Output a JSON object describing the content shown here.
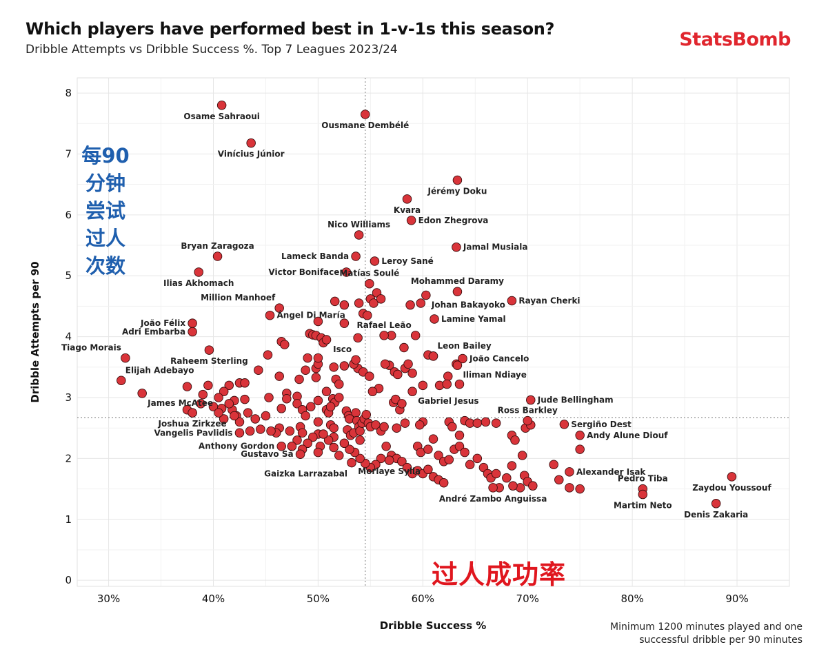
{
  "header": {
    "title": "Which players have performed best in 1-v-1s this season?",
    "subtitle": "Dribble Attempts vs Dribble Success %. Top 7 Leagues 2023/24",
    "brand": "StatsBomb"
  },
  "annotations": {
    "y_chinese": "每90分钟尝试过人次数",
    "x_chinese": "过人成功率"
  },
  "footnote": [
    "Minimum 1200 minutes played and one",
    "successful dribble per 90 minutes"
  ],
  "colors": {
    "point_fill": "#d9343a",
    "point_stroke": "#3a0d0d",
    "brand": "#e0262e",
    "cn_blue": "#1f5fae",
    "cn_red": "#e0161e"
  },
  "chart_data": {
    "type": "scatter",
    "xlabel": "Dribble Success %",
    "ylabel": "Dribble Attempts per 90",
    "xlim": [
      27,
      95
    ],
    "ylim": [
      -0.1,
      8.25
    ],
    "xticks": [
      30,
      40,
      50,
      60,
      70,
      80,
      90
    ],
    "xtick_labels": [
      "30%",
      "40%",
      "50%",
      "60%",
      "70%",
      "80%",
      "90%"
    ],
    "yticks": [
      0,
      1,
      2,
      3,
      4,
      5,
      6,
      7,
      8
    ],
    "grid": true,
    "reference_lines": {
      "x": 54.5,
      "y": 2.67
    },
    "labeled_points": [
      {
        "name": "Osame Sahraoui",
        "x": 40.8,
        "y": 7.8,
        "label_pos": "below"
      },
      {
        "name": "Ousmane Dembélé",
        "x": 54.5,
        "y": 7.65,
        "label_pos": "below"
      },
      {
        "name": "Vinícius Júnior",
        "x": 43.6,
        "y": 7.18,
        "label_pos": "below"
      },
      {
        "name": "Jérémy Doku",
        "x": 63.3,
        "y": 6.57,
        "label_pos": "below"
      },
      {
        "name": "Kvara",
        "x": 58.5,
        "y": 6.26,
        "label_pos": "below"
      },
      {
        "name": "Edon Zhegrova",
        "x": 58.9,
        "y": 5.91,
        "label_pos": "right"
      },
      {
        "name": "Nico Williams",
        "x": 53.9,
        "y": 5.67,
        "label_pos": "above"
      },
      {
        "name": "Jamal Musiala",
        "x": 63.2,
        "y": 5.47,
        "label_pos": "right"
      },
      {
        "name": "Bryan Zaragoza",
        "x": 40.4,
        "y": 5.32,
        "label_pos": "above"
      },
      {
        "name": "Lameck Banda",
        "x": 53.6,
        "y": 5.32,
        "label_pos": "left"
      },
      {
        "name": "Leroy Sané",
        "x": 55.4,
        "y": 5.24,
        "label_pos": "right"
      },
      {
        "name": "Victor Boniface",
        "x": 52.7,
        "y": 5.06,
        "label_pos": "left"
      },
      {
        "name": "Ilias Akhomach",
        "x": 38.6,
        "y": 5.06,
        "label_pos": "below"
      },
      {
        "name": "Matías Soulé",
        "x": 54.9,
        "y": 4.87,
        "label_pos": "above"
      },
      {
        "name": "Mohammed Daramy",
        "x": 63.3,
        "y": 4.74,
        "label_pos": "above"
      },
      {
        "name": "Rayan Cherki",
        "x": 68.5,
        "y": 4.59,
        "label_pos": "right"
      },
      {
        "name": "Johan Bakayoko",
        "x": 60.3,
        "y": 4.68,
        "label_pos": "belowright"
      },
      {
        "name": "Million Manhoef",
        "x": 46.3,
        "y": 4.47,
        "label_pos": "aboveleft"
      },
      {
        "name": "Lamine Yamal",
        "x": 61.1,
        "y": 4.29,
        "label_pos": "right"
      },
      {
        "name": "Ángel Di María",
        "x": 45.4,
        "y": 4.35,
        "label_pos": "right"
      },
      {
        "name": "João Félix",
        "x": 38.0,
        "y": 4.22,
        "label_pos": "left"
      },
      {
        "name": "Rafael Leão",
        "x": 56.3,
        "y": 4.02,
        "label_pos": "above"
      },
      {
        "name": "Adri Embarba",
        "x": 38.0,
        "y": 4.08,
        "label_pos": "left"
      },
      {
        "name": "Leon Bailey",
        "x": 61.0,
        "y": 3.68,
        "label_pos": "aboveright"
      },
      {
        "name": "Tiago Morais",
        "x": 31.6,
        "y": 3.65,
        "label_pos": "aboveleft"
      },
      {
        "name": "Raheem Sterling",
        "x": 39.6,
        "y": 3.78,
        "label_pos": "below"
      },
      {
        "name": "Isco",
        "x": 53.6,
        "y": 3.62,
        "label_pos": "aboveleft"
      },
      {
        "name": "João Cancelo",
        "x": 63.8,
        "y": 3.64,
        "label_pos": "right"
      },
      {
        "name": "Elijah Adebayo",
        "x": 31.2,
        "y": 3.28,
        "label_pos": "aboveright"
      },
      {
        "name": "Iliman Ndiaye",
        "x": 63.3,
        "y": 3.53,
        "label_pos": "belowright"
      },
      {
        "name": "Gabriel Jesus",
        "x": 59.0,
        "y": 3.1,
        "label_pos": "belowright"
      },
      {
        "name": "Jude Bellingham",
        "x": 70.3,
        "y": 2.96,
        "label_pos": "right"
      },
      {
        "name": "James McAtee",
        "x": 33.2,
        "y": 3.07,
        "label_pos": "belowright"
      },
      {
        "name": "Ross Barkley",
        "x": 70.0,
        "y": 2.62,
        "label_pos": "above"
      },
      {
        "name": "Joshua Zirkzee",
        "x": 38.0,
        "y": 2.75,
        "label_pos": "below"
      },
      {
        "name": "Sergiño Dest",
        "x": 73.5,
        "y": 2.56,
        "label_pos": "right"
      },
      {
        "name": "Vangelis Pavlidis",
        "x": 42.5,
        "y": 2.42,
        "label_pos": "left"
      },
      {
        "name": "Andy Alune Diouf",
        "x": 75.0,
        "y": 2.38,
        "label_pos": "right"
      },
      {
        "name": "Anthony Gordon",
        "x": 46.5,
        "y": 2.2,
        "label_pos": "left"
      },
      {
        "name": "Gustavo Sá",
        "x": 48.3,
        "y": 2.07,
        "label_pos": "left"
      },
      {
        "name": "Alexander Isak",
        "x": 74.0,
        "y": 1.78,
        "label_pos": "right"
      },
      {
        "name": "Gaizka Larrazabal",
        "x": 53.2,
        "y": 1.93,
        "label_pos": "belowleft"
      },
      {
        "name": "Zaydou Youssouf",
        "x": 89.5,
        "y": 1.7,
        "label_pos": "below"
      },
      {
        "name": "Pedro Tiba",
        "x": 81.0,
        "y": 1.5,
        "label_pos": "above"
      },
      {
        "name": "Morlaye Sylla",
        "x": 56.8,
        "y": 1.97,
        "label_pos": "below"
      },
      {
        "name": "André Zambo Anguissa",
        "x": 66.7,
        "y": 1.52,
        "label_pos": "below"
      },
      {
        "name": "Martim Neto",
        "x": 81.0,
        "y": 1.41,
        "label_pos": "below"
      },
      {
        "name": "Denis Zakaria",
        "x": 88.0,
        "y": 1.26,
        "label_pos": "below"
      }
    ],
    "other_points": [
      [
        41.5,
        3.2
      ],
      [
        42.5,
        3.24
      ],
      [
        41.0,
        3.1
      ],
      [
        40.5,
        3.0
      ],
      [
        42.0,
        2.95
      ],
      [
        41.8,
        2.8
      ],
      [
        42.2,
        2.7
      ],
      [
        40.0,
        2.85
      ],
      [
        39.5,
        3.2
      ],
      [
        39.0,
        3.05
      ],
      [
        38.8,
        2.9
      ],
      [
        38.0,
        2.75
      ],
      [
        37.5,
        2.8
      ],
      [
        37.5,
        3.18
      ],
      [
        40.8,
        2.82
      ],
      [
        43.0,
        2.97
      ],
      [
        43.0,
        3.24
      ],
      [
        43.3,
        2.75
      ],
      [
        44.0,
        2.65
      ],
      [
        44.3,
        3.45
      ],
      [
        45.3,
        3.0
      ],
      [
        45.2,
        3.7
      ],
      [
        46.3,
        3.35
      ],
      [
        46.5,
        3.92
      ],
      [
        46.8,
        3.87
      ],
      [
        47.0,
        3.07
      ],
      [
        47.0,
        2.98
      ],
      [
        46.5,
        2.82
      ],
      [
        46.3,
        2.5
      ],
      [
        47.3,
        2.45
      ],
      [
        47.5,
        2.2
      ],
      [
        48.0,
        3.02
      ],
      [
        48.2,
        3.3
      ],
      [
        48.0,
        2.9
      ],
      [
        48.5,
        2.8
      ],
      [
        48.8,
        3.45
      ],
      [
        49.0,
        3.65
      ],
      [
        48.8,
        2.7
      ],
      [
        48.3,
        2.52
      ],
      [
        48.5,
        2.42
      ],
      [
        49.2,
        4.05
      ],
      [
        49.5,
        4.03
      ],
      [
        49.8,
        3.48
      ],
      [
        50.0,
        3.55
      ],
      [
        49.8,
        4.02
      ],
      [
        50.0,
        4.25
      ],
      [
        50.3,
        3.98
      ],
      [
        50.5,
        3.9
      ],
      [
        50.8,
        3.95
      ],
      [
        49.8,
        3.33
      ],
      [
        50.0,
        3.65
      ],
      [
        50.0,
        2.95
      ],
      [
        50.0,
        2.6
      ],
      [
        50.0,
        2.4
      ],
      [
        50.2,
        2.2
      ],
      [
        50.0,
        2.1
      ],
      [
        50.8,
        2.8
      ],
      [
        51.0,
        2.75
      ],
      [
        51.2,
        2.55
      ],
      [
        51.4,
        2.98
      ],
      [
        51.6,
        2.92
      ],
      [
        52.0,
        3.0
      ],
      [
        51.5,
        2.5
      ],
      [
        51.5,
        2.35
      ],
      [
        51.7,
        3.3
      ],
      [
        51.5,
        3.5
      ],
      [
        51.6,
        4.58
      ],
      [
        52.5,
        4.52
      ],
      [
        52.5,
        4.22
      ],
      [
        52.5,
        3.52
      ],
      [
        52.7,
        2.78
      ],
      [
        52.9,
        2.7
      ],
      [
        53.0,
        2.65
      ],
      [
        52.8,
        2.47
      ],
      [
        53.1,
        2.38
      ],
      [
        53.4,
        2.42
      ],
      [
        53.6,
        2.75
      ],
      [
        53.7,
        2.62
      ],
      [
        53.9,
        2.52
      ],
      [
        54.0,
        2.45
      ],
      [
        54.0,
        2.3
      ],
      [
        54.2,
        2.58
      ],
      [
        54.4,
        2.65
      ],
      [
        54.6,
        2.72
      ],
      [
        54.8,
        2.58
      ],
      [
        53.8,
        3.48
      ],
      [
        54.3,
        3.42
      ],
      [
        53.4,
        3.55
      ],
      [
        53.8,
        3.98
      ],
      [
        53.9,
        4.55
      ],
      [
        54.3,
        4.38
      ],
      [
        54.7,
        4.35
      ],
      [
        55.0,
        4.62
      ],
      [
        55.3,
        4.55
      ],
      [
        55.6,
        4.72
      ],
      [
        56.0,
        4.62
      ],
      [
        57.0,
        4.02
      ],
      [
        56.8,
        3.53
      ],
      [
        56.4,
        3.55
      ],
      [
        57.3,
        3.42
      ],
      [
        57.6,
        3.38
      ],
      [
        57.2,
        2.92
      ],
      [
        57.4,
        2.97
      ],
      [
        57.8,
        2.8
      ],
      [
        58.0,
        2.9
      ],
      [
        58.3,
        3.48
      ],
      [
        58.8,
        4.52
      ],
      [
        59.8,
        4.55
      ],
      [
        59.3,
        4.02
      ],
      [
        58.2,
        3.82
      ],
      [
        60.5,
        3.7
      ],
      [
        61.0,
        3.68
      ],
      [
        61.6,
        3.2
      ],
      [
        62.4,
        3.35
      ],
      [
        62.3,
        3.22
      ],
      [
        63.5,
        3.22
      ],
      [
        63.2,
        3.55
      ],
      [
        62.5,
        2.6
      ],
      [
        62.8,
        2.52
      ],
      [
        63.5,
        2.38
      ],
      [
        64.0,
        2.62
      ],
      [
        64.5,
        2.58
      ],
      [
        65.2,
        2.58
      ],
      [
        66.0,
        2.6
      ],
      [
        67.0,
        2.58
      ],
      [
        68.5,
        2.38
      ],
      [
        68.8,
        2.3
      ],
      [
        69.8,
        2.5
      ],
      [
        70.3,
        2.55
      ],
      [
        60.0,
        2.6
      ],
      [
        59.5,
        2.2
      ],
      [
        59.8,
        2.1
      ],
      [
        60.5,
        2.15
      ],
      [
        61.0,
        2.32
      ],
      [
        61.5,
        2.05
      ],
      [
        62.0,
        1.95
      ],
      [
        62.5,
        1.98
      ],
      [
        63.0,
        2.15
      ],
      [
        63.5,
        2.2
      ],
      [
        64.0,
        2.1
      ],
      [
        64.5,
        1.9
      ],
      [
        65.2,
        2.0
      ],
      [
        65.8,
        1.85
      ],
      [
        66.2,
        1.75
      ],
      [
        66.5,
        1.68
      ],
      [
        67.0,
        1.75
      ],
      [
        67.3,
        1.52
      ],
      [
        68.0,
        1.68
      ],
      [
        68.5,
        1.88
      ],
      [
        69.5,
        2.05
      ],
      [
        69.7,
        1.72
      ],
      [
        70.0,
        1.62
      ],
      [
        70.5,
        1.55
      ],
      [
        69.3,
        1.52
      ],
      [
        68.6,
        1.55
      ],
      [
        72.5,
        1.9
      ],
      [
        73.0,
        1.65
      ],
      [
        74.0,
        1.52
      ],
      [
        75.0,
        1.5
      ],
      [
        75.0,
        2.15
      ],
      [
        55.0,
        2.52
      ],
      [
        55.5,
        2.55
      ],
      [
        56.0,
        2.45
      ],
      [
        56.5,
        2.2
      ],
      [
        57.0,
        2.05
      ],
      [
        57.5,
        2.0
      ],
      [
        58.0,
        1.95
      ],
      [
        58.5,
        1.85
      ],
      [
        59.0,
        1.75
      ],
      [
        59.5,
        1.8
      ],
      [
        60.0,
        1.75
      ],
      [
        60.5,
        1.82
      ],
      [
        61.0,
        1.7
      ],
      [
        61.5,
        1.65
      ],
      [
        62.0,
        1.6
      ],
      [
        56.0,
        2.0
      ],
      [
        55.5,
        1.9
      ],
      [
        55.0,
        1.85
      ],
      [
        54.5,
        1.92
      ],
      [
        54.0,
        2.0
      ],
      [
        53.5,
        2.1
      ],
      [
        53.0,
        2.15
      ],
      [
        52.5,
        2.25
      ],
      [
        52.0,
        2.05
      ],
      [
        51.5,
        2.18
      ],
      [
        51.0,
        2.3
      ],
      [
        50.5,
        2.4
      ],
      [
        49.5,
        2.35
      ],
      [
        49.0,
        2.25
      ],
      [
        48.5,
        2.15
      ],
      [
        48.0,
        2.3
      ],
      [
        47.5,
        2.2
      ],
      [
        46.0,
        2.42
      ],
      [
        45.5,
        2.45
      ],
      [
        44.5,
        2.48
      ],
      [
        43.5,
        2.45
      ],
      [
        42.5,
        2.6
      ],
      [
        42.0,
        2.7
      ],
      [
        41.0,
        2.65
      ],
      [
        41.5,
        2.9
      ],
      [
        40.5,
        2.75
      ],
      [
        45.0,
        2.7
      ],
      [
        56.3,
        2.52
      ],
      [
        57.5,
        2.5
      ],
      [
        58.3,
        2.58
      ],
      [
        59.7,
        2.55
      ],
      [
        55.8,
        3.15
      ],
      [
        55.2,
        3.1
      ],
      [
        54.9,
        3.35
      ],
      [
        60.0,
        3.2
      ],
      [
        59.0,
        3.4
      ],
      [
        58.6,
        3.55
      ],
      [
        52.0,
        3.22
      ],
      [
        50.8,
        3.1
      ],
      [
        51.2,
        2.85
      ],
      [
        49.3,
        2.85
      ]
    ]
  }
}
